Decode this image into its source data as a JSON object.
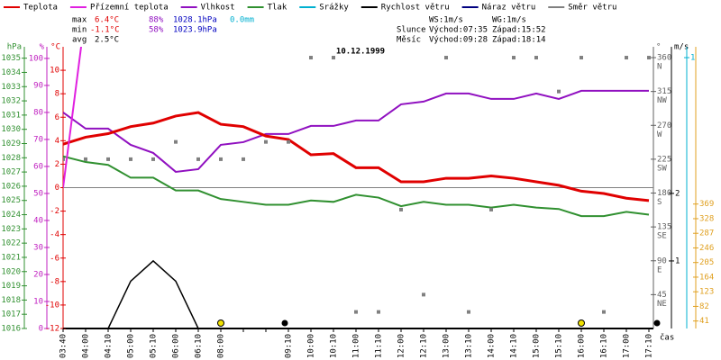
{
  "chart_data": {
    "type": "line",
    "title": "10.12.1999",
    "time_label": "čas",
    "categories": [
      "03:40",
      "04:00",
      "04:10",
      "05:00",
      "05:10",
      "06:00",
      "06:10",
      "08:00",
      null,
      null,
      "09:10",
      "10:00",
      "10:10",
      "11:00",
      "11:10",
      "12:00",
      "12:10",
      "13:00",
      "13:10",
      "14:00",
      "14:10",
      "15:00",
      "15:10",
      "16:00",
      "16:10",
      "17:00",
      "17:10"
    ],
    "series": [
      {
        "name": "Teplota",
        "color": "#e00000",
        "axis": "temp",
        "values": [
          3.7,
          4.3,
          4.6,
          5.2,
          5.5,
          6.1,
          6.4,
          5.4,
          5.2,
          4.4,
          4.1,
          2.8,
          2.9,
          1.7,
          1.7,
          0.5,
          0.5,
          0.8,
          0.8,
          1.0,
          0.8,
          0.5,
          0.2,
          -0.3,
          -0.5,
          -0.9,
          -1.1
        ]
      },
      {
        "name": "Přízemní teplota",
        "color": "#e020e0",
        "axis": "temp",
        "values": [
          0,
          15,
          null,
          null,
          null,
          null,
          null,
          null,
          null,
          null,
          null,
          null,
          null,
          null,
          null,
          null,
          null,
          null,
          null,
          null,
          null,
          null,
          null,
          null,
          null,
          null,
          null
        ]
      },
      {
        "name": "Vlhkost",
        "color": "#9010c0",
        "axis": "hum",
        "values": [
          80,
          74,
          74,
          68,
          65,
          58,
          59,
          68,
          69,
          72,
          72,
          75,
          75,
          77,
          77,
          83,
          84,
          87,
          87,
          85,
          85,
          87,
          85,
          88,
          88,
          88,
          88
        ]
      },
      {
        "name": "Tlak",
        "color": "#309030",
        "axis": "press",
        "values": [
          1028.1,
          1027.7,
          1027.5,
          1026.6,
          1026.6,
          1025.7,
          1025.7,
          1025.1,
          1024.9,
          1024.7,
          1024.7,
          1025.0,
          1024.9,
          1025.4,
          1025.2,
          1024.6,
          1024.9,
          1024.7,
          1024.7,
          1024.5,
          1024.7,
          1024.5,
          1024.4,
          1023.9,
          1023.9,
          1024.2,
          1024.0
        ]
      },
      {
        "name": "Srážky",
        "color": "#00b0d0"
      },
      {
        "name": "Rychlost větru",
        "color": "#000000",
        "axis": "speed",
        "values": [
          0,
          0,
          0,
          0.7,
          1.0,
          0.7,
          0,
          0,
          0,
          0,
          0,
          0,
          0,
          0,
          0,
          0,
          0,
          0,
          0,
          0,
          0,
          0,
          0,
          0,
          0,
          0,
          0
        ]
      },
      {
        "name": "Náraz větru",
        "color": "#000080"
      },
      {
        "name": "Směr větru",
        "color": "#808080",
        "axis": "dir",
        "points": true,
        "values": [
          225,
          225,
          225,
          225,
          225,
          248,
          225,
          225,
          225,
          248,
          248,
          360,
          360,
          22,
          22,
          158,
          45,
          360,
          22,
          158,
          360,
          360,
          315,
          360,
          22,
          360,
          360
        ]
      }
    ],
    "axes": {
      "press": {
        "label": "hPa",
        "color": "#309030",
        "lim": [
          1016,
          1035.8
        ],
        "ticks": [
          1016,
          1017,
          1018,
          1019,
          1020,
          1021,
          1022,
          1023,
          1024,
          1025,
          1026,
          1027,
          1028,
          1029,
          1030,
          1031,
          1032,
          1033,
          1034,
          1035
        ]
      },
      "hum": {
        "label": "%",
        "color": "#c020c0",
        "lim": [
          0,
          104.3
        ],
        "ticks": [
          0,
          10,
          20,
          30,
          40,
          50,
          60,
          70,
          80,
          90,
          100
        ]
      },
      "temp": {
        "label": "°C",
        "color": "#e00000",
        "lim": [
          -12,
          12
        ],
        "ticks": [
          -12,
          -10,
          -8,
          -6,
          -4,
          -2,
          0,
          2,
          4,
          6,
          8,
          10
        ]
      },
      "dir": {
        "label": "°",
        "color": "#606060",
        "lim": [
          0,
          374.4
        ],
        "ticks": [
          45,
          90,
          135,
          180,
          225,
          270,
          315,
          360
        ],
        "names": [
          "NE",
          "E",
          "SE",
          "S",
          "SW",
          "W",
          "NW",
          "N"
        ]
      },
      "speed": {
        "label": "m/s",
        "color": "#000000",
        "lim": [
          0,
          4.17
        ],
        "ticks": [
          1,
          2
        ]
      },
      "precip": {
        "color": "#00b0d0",
        "lim": [
          0,
          1.04
        ],
        "ticks": [
          1
        ]
      },
      "extra": {
        "color": "#e0a020",
        "lim": [
          20,
          810
        ],
        "ticks": [
          41,
          82,
          123,
          164,
          205,
          246,
          287,
          328,
          369
        ]
      }
    },
    "stats": {
      "max": {
        "label": "max",
        "temp": "6.4°C",
        "hum": "88%",
        "press": "1028.1hPa",
        "precip": "0.0mm"
      },
      "min": {
        "label": "min",
        "temp": "-1.1°C",
        "hum": "58%",
        "press": "1023.9hPa"
      },
      "avg": {
        "label": "avg",
        "temp": "2.5°C"
      }
    },
    "wind": {
      "ws": "WS:1m/s",
      "wg": "WG:1m/s"
    },
    "sun": {
      "label": "Slunce",
      "rise": "Východ:07:35",
      "set": "Západ:15:52"
    },
    "moon": {
      "label": "Měsíc",
      "rise": "Východ:09:28",
      "set": "Západ:18:14"
    }
  }
}
